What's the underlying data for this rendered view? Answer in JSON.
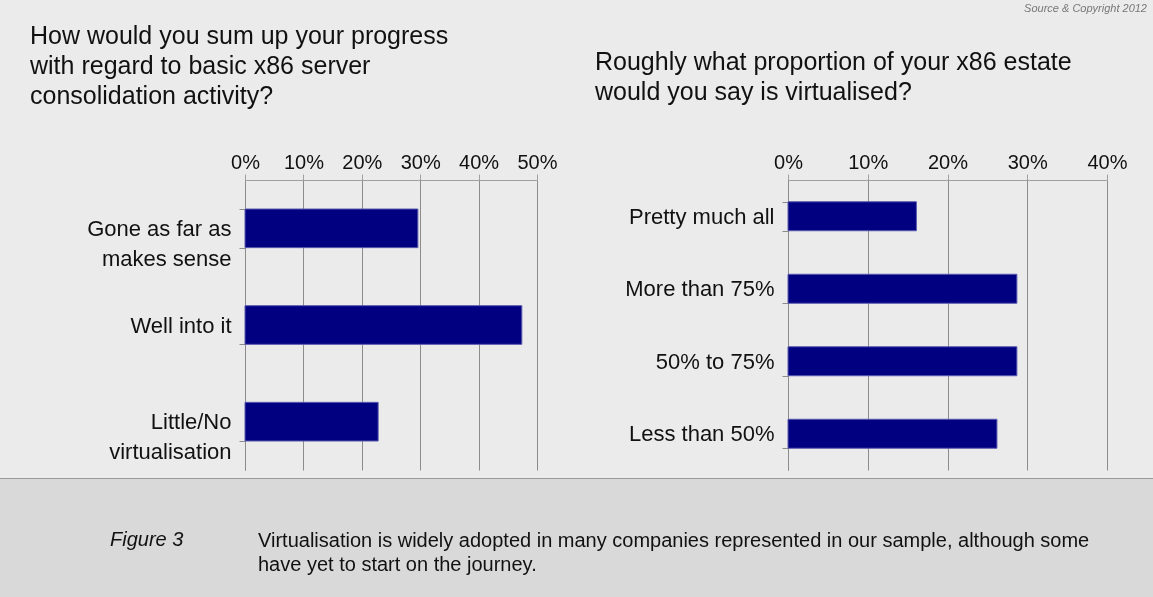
{
  "chart_data": [
    {
      "type": "bar",
      "orientation": "horizontal",
      "title": "How would you sum up your progress with regard to basic x86 server consolidation activity?",
      "categories": [
        "Gone as far as makes sense",
        "Well into it",
        "Little/No virtualisation"
      ],
      "values": [
        29.6,
        47.4,
        22.8
      ],
      "color": "#000080",
      "xlim": [
        0,
        50
      ],
      "xticks": [
        {
          "value": 0,
          "label": "0%"
        },
        {
          "value": 10,
          "label": "10%"
        },
        {
          "value": 20,
          "label": "20%"
        },
        {
          "value": 30,
          "label": "30%"
        },
        {
          "value": 40,
          "label": "40%"
        },
        {
          "value": 50,
          "label": "50%"
        }
      ],
      "grid": "x",
      "annotations": [
        "Figure 3",
        "Virtualisation is widely adopted in many companies represented in our sample, although some have yet to start on the journey."
      ]
    },
    {
      "type": "bar",
      "orientation": "horizontal",
      "title": "Roughly what proportion of your x86 estate would you say is virtualised?",
      "categories": [
        "Pretty much all",
        "More than 75%",
        "50% to 75%",
        "Less than 50%"
      ],
      "values": [
        16.1,
        28.7,
        28.7,
        26.2
      ],
      "color": "#000080",
      "xlim": [
        0,
        40
      ],
      "xticks": [
        {
          "value": 0,
          "label": "0%"
        },
        {
          "value": 10,
          "label": "10%"
        },
        {
          "value": 20,
          "label": "20%"
        },
        {
          "value": 30,
          "label": "30%"
        },
        {
          "value": 40,
          "label": "40%"
        }
      ],
      "grid": "x",
      "annotations": [
        "Source & Copyright 2012"
      ]
    }
  ]
}
